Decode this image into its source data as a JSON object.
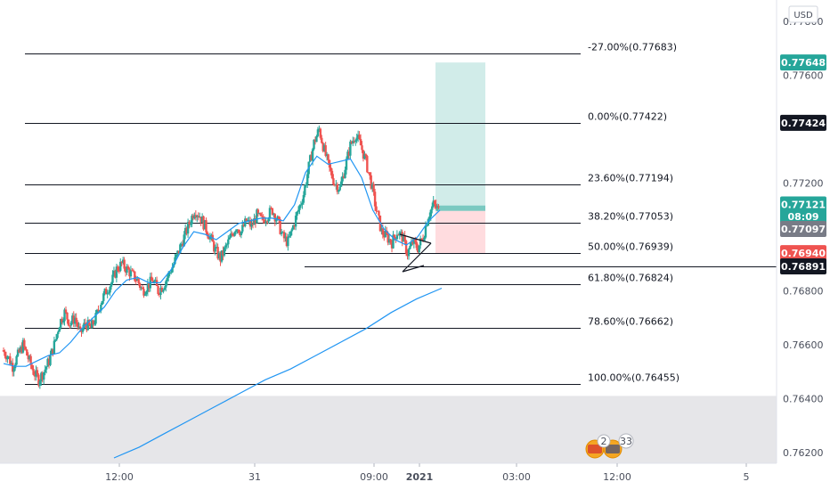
{
  "chart_data": {
    "type": "candlestick",
    "symbol_currency": "USD",
    "y_axis": {
      "range": [
        0.7616,
        0.7788
      ],
      "ticks": [
        "0.77800",
        "0.77600",
        "0.77200",
        "0.76800",
        "0.76600",
        "0.76400",
        "0.76200"
      ]
    },
    "x_axis": {
      "ticks": [
        "12:00",
        "31",
        "09:00",
        "2021",
        "03:00",
        "12:00",
        "5"
      ]
    },
    "fib_levels": [
      {
        "label": "-27.00%(0.77683)",
        "value": 0.77683
      },
      {
        "label": "0.00%(0.77422)",
        "value": 0.77422
      },
      {
        "label": "23.60%(0.77194)",
        "value": 0.77194
      },
      {
        "label": "38.20%(0.77053)",
        "value": 0.77053
      },
      {
        "label": "50.00%(0.76939)",
        "value": 0.76939
      },
      {
        "label": "61.80%(0.76824)",
        "value": 0.76824
      },
      {
        "label": "78.60%(0.76662)",
        "value": 0.76662
      },
      {
        "label": "100.00%(0.76455)",
        "value": 0.76455
      }
    ],
    "horizontal_line": 0.76891,
    "price_badges": [
      {
        "label": "0.77648",
        "value": 0.77648,
        "color": "#26a69a"
      },
      {
        "label": "0.77424",
        "value": 0.77424,
        "color": "#131722"
      },
      {
        "label": "0.77121",
        "value": 0.77121,
        "color": "#26a69a"
      },
      {
        "label": "08:09",
        "value": 0.77076,
        "color": "#26a69a"
      },
      {
        "label": "0.77097",
        "value": 0.7703,
        "color": "#787b86"
      },
      {
        "label": "0.76940",
        "value": 0.7694,
        "color": "#ef5350"
      },
      {
        "label": "0.76891",
        "value": 0.76891,
        "color": "#131722"
      }
    ],
    "position": {
      "entry": 0.77097,
      "target": 0.77648,
      "stop": 0.7694
    },
    "shaded_zone": [
      0.7616,
      0.7641
    ],
    "events_badge": {
      "count_a": "2",
      "count_b": "33"
    },
    "price_path": [
      0.7658,
      0.7656,
      0.7652,
      0.7656,
      0.766,
      0.7655,
      0.765,
      0.7647,
      0.765,
      0.7654,
      0.766,
      0.7668,
      0.7672,
      0.7668,
      0.767,
      0.7664,
      0.7668,
      0.7666,
      0.767,
      0.7676,
      0.768,
      0.7683,
      0.7688,
      0.769,
      0.7688,
      0.7686,
      0.7684,
      0.768,
      0.7682,
      0.7684,
      0.768,
      0.7682,
      0.7686,
      0.769,
      0.7695,
      0.77,
      0.7705,
      0.771,
      0.7708,
      0.7704,
      0.77,
      0.7695,
      0.7692,
      0.7696,
      0.77,
      0.7704,
      0.7702,
      0.7706,
      0.7704,
      0.7708,
      0.7706,
      0.7708,
      0.771,
      0.7706,
      0.77,
      0.7698,
      0.7704,
      0.771,
      0.7716,
      0.7726,
      0.7735,
      0.774,
      0.7732,
      0.7725,
      0.772,
      0.7718,
      0.7726,
      0.7734,
      0.7738,
      0.7734,
      0.7728,
      0.772,
      0.771,
      0.7702,
      0.77,
      0.7698,
      0.7702,
      0.77,
      0.7694,
      0.7698,
      0.7696,
      0.77,
      0.7708,
      0.7712,
      0.771
    ],
    "ma_short": [
      0.7653,
      0.7652,
      0.7652,
      0.7654,
      0.7656,
      0.7657,
      0.7661,
      0.7666,
      0.767,
      0.7674,
      0.768,
      0.7684,
      0.7685,
      0.7683,
      0.7683,
      0.7688,
      0.7696,
      0.7702,
      0.7701,
      0.7699,
      0.7702,
      0.7705,
      0.7706,
      0.7707,
      0.7707,
      0.7706,
      0.7712,
      0.7724,
      0.773,
      0.7727,
      0.7728,
      0.7729,
      0.7722,
      0.771,
      0.7703,
      0.7699,
      0.7697,
      0.77,
      0.7706,
      0.771
    ],
    "ma_long": [
      0.7618,
      0.7622,
      0.7627,
      0.7632,
      0.7637,
      0.7642,
      0.7647,
      0.7651,
      0.7656,
      0.7661,
      0.7666,
      0.7672,
      0.7677,
      0.7681
    ]
  }
}
